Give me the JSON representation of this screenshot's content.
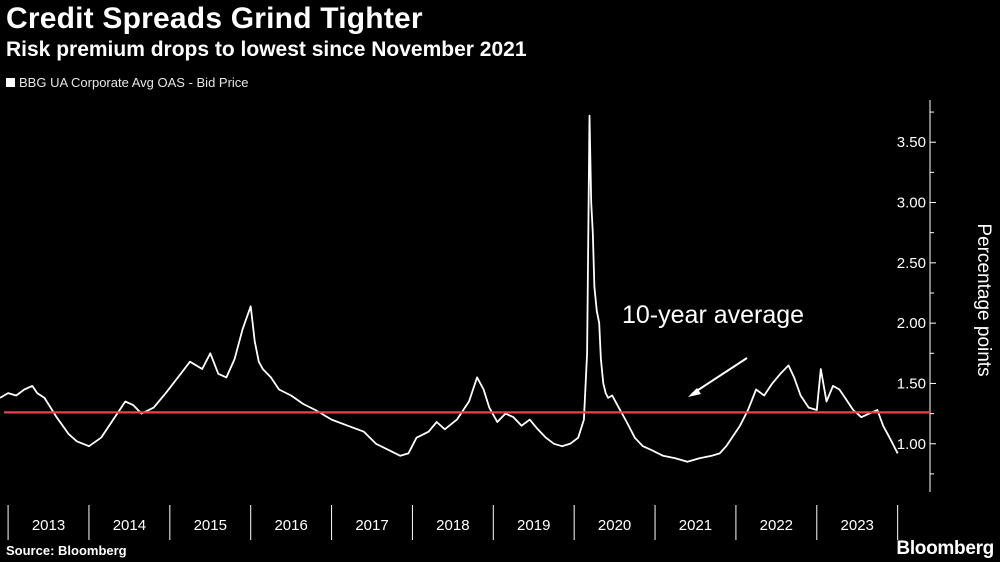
{
  "header": {
    "title": "Credit Spreads Grind Tighter",
    "subtitle": "Risk premium drops to lowest since November 2021"
  },
  "footer": {
    "source": "Source: Bloomberg",
    "brand": "Bloomberg"
  },
  "colors": {
    "background": "#000000",
    "series": "#ffffff",
    "average_line": "#e8434b"
  },
  "chart_data": {
    "type": "line",
    "title": "Credit Spreads Grind Tighter",
    "subtitle": "Risk premium drops to lowest since November 2021",
    "xlabel": "",
    "ylabel": "Percentage points",
    "x_ticks": [
      "2013",
      "2014",
      "2015",
      "2016",
      "2017",
      "2018",
      "2019",
      "2020",
      "2021",
      "2022",
      "2023"
    ],
    "xlim": [
      2012.9,
      2024.4
    ],
    "y_ticks": [
      "1.00",
      "1.50",
      "2.00",
      "2.50",
      "3.00",
      "3.50"
    ],
    "ylim": [
      0.6,
      3.85
    ],
    "legend_position": "top-left",
    "grid": false,
    "series": [
      {
        "name": "BBG UA Corporate Avg OAS - Bid Price",
        "x": [
          2012.9,
          2013.0,
          2013.1,
          2013.2,
          2013.3,
          2013.36,
          2013.45,
          2013.6,
          2013.75,
          2013.85,
          2014.0,
          2014.15,
          2014.3,
          2014.45,
          2014.55,
          2014.65,
          2014.8,
          2014.95,
          2015.1,
          2015.25,
          2015.4,
          2015.5,
          2015.6,
          2015.7,
          2015.8,
          2015.9,
          2016.0,
          2016.05,
          2016.1,
          2016.15,
          2016.25,
          2016.35,
          2016.5,
          2016.65,
          2016.8,
          2017.0,
          2017.2,
          2017.4,
          2017.55,
          2017.7,
          2017.85,
          2017.95,
          2018.05,
          2018.2,
          2018.3,
          2018.4,
          2018.55,
          2018.7,
          2018.8,
          2018.88,
          2018.95,
          2019.05,
          2019.15,
          2019.25,
          2019.35,
          2019.45,
          2019.55,
          2019.65,
          2019.75,
          2019.85,
          2019.95,
          2020.05,
          2020.12,
          2020.16,
          2020.19,
          2020.21,
          2020.23,
          2020.25,
          2020.28,
          2020.31,
          2020.33,
          2020.36,
          2020.39,
          2020.42,
          2020.47,
          2020.55,
          2020.65,
          2020.75,
          2020.85,
          2020.95,
          2021.1,
          2021.25,
          2021.4,
          2021.55,
          2021.7,
          2021.8,
          2021.88,
          2021.95,
          2022.05,
          2022.15,
          2022.25,
          2022.35,
          2022.45,
          2022.55,
          2022.65,
          2022.72,
          2022.8,
          2022.9,
          2023.0,
          2023.05,
          2023.12,
          2023.2,
          2023.28,
          2023.35,
          2023.45,
          2023.55,
          2023.65,
          2023.75,
          2023.82,
          2023.9,
          2024.0
        ],
        "values": [
          1.38,
          1.42,
          1.4,
          1.45,
          1.48,
          1.42,
          1.38,
          1.22,
          1.08,
          1.02,
          0.98,
          1.05,
          1.2,
          1.35,
          1.32,
          1.25,
          1.3,
          1.42,
          1.55,
          1.68,
          1.62,
          1.75,
          1.58,
          1.55,
          1.7,
          1.95,
          2.14,
          1.85,
          1.68,
          1.62,
          1.55,
          1.45,
          1.4,
          1.33,
          1.28,
          1.2,
          1.15,
          1.1,
          1.0,
          0.95,
          0.9,
          0.92,
          1.05,
          1.1,
          1.18,
          1.12,
          1.2,
          1.35,
          1.55,
          1.45,
          1.3,
          1.18,
          1.25,
          1.22,
          1.15,
          1.2,
          1.12,
          1.05,
          1.0,
          0.98,
          1.0,
          1.05,
          1.2,
          1.75,
          3.72,
          3.0,
          2.75,
          2.3,
          2.1,
          2.0,
          1.7,
          1.5,
          1.42,
          1.38,
          1.4,
          1.3,
          1.18,
          1.05,
          0.98,
          0.95,
          0.9,
          0.88,
          0.85,
          0.88,
          0.9,
          0.92,
          0.98,
          1.05,
          1.15,
          1.28,
          1.45,
          1.4,
          1.5,
          1.58,
          1.65,
          1.55,
          1.4,
          1.3,
          1.28,
          1.62,
          1.35,
          1.48,
          1.45,
          1.38,
          1.28,
          1.22,
          1.25,
          1.28,
          1.15,
          1.05,
          0.92
        ]
      },
      {
        "name": "10-year average",
        "value": 1.26
      }
    ],
    "annotations": [
      {
        "text": "10-year average"
      }
    ]
  }
}
